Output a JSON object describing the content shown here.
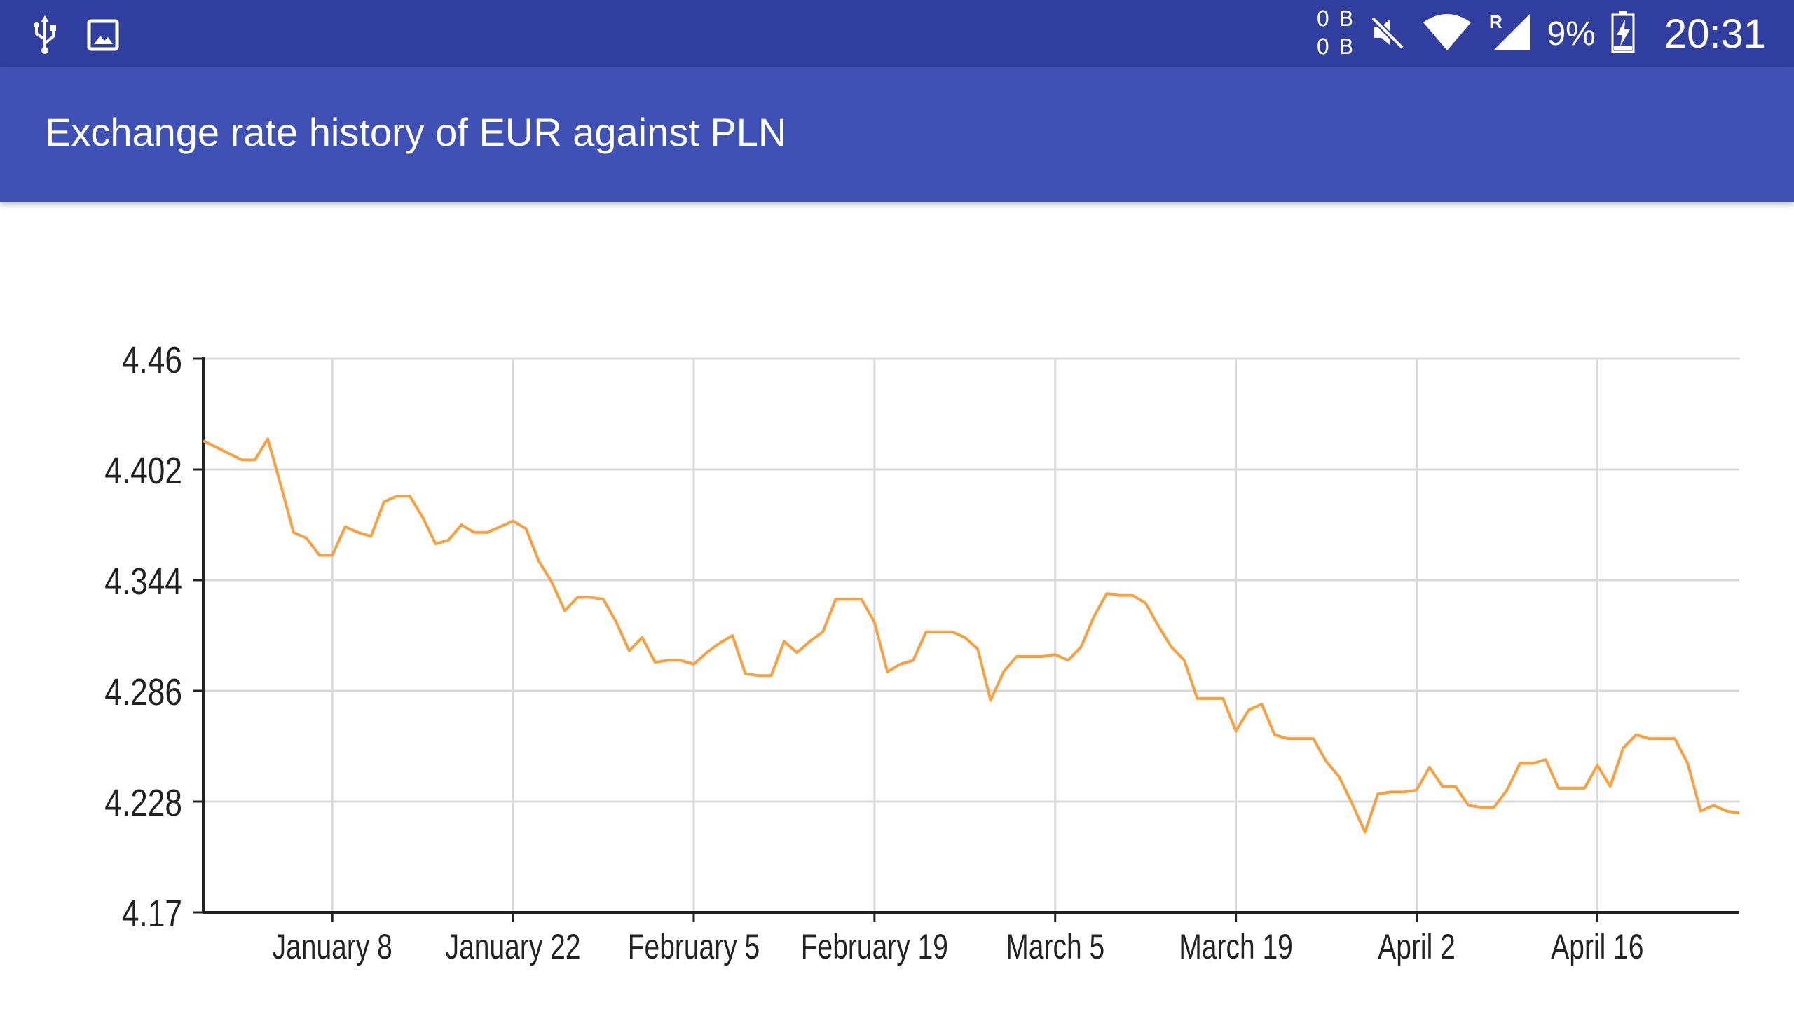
{
  "status_bar": {
    "net_up": "0 B",
    "net_down": "0 B",
    "battery": "9%",
    "time": "20:31",
    "roaming": "R",
    "icons": [
      "usb-icon",
      "image-icon",
      "mute-icon",
      "wifi-icon",
      "signal-icon",
      "battery-charging-icon"
    ]
  },
  "app_bar": {
    "title": "Exchange rate history of EUR against PLN"
  },
  "colors": {
    "status_bar": "#303f9f",
    "app_bar": "#3f51b5",
    "line": "#f9a040",
    "grid": "#d9d9d9",
    "axis": "#222222"
  },
  "chart_data": {
    "type": "line",
    "title": "",
    "xlabel": "",
    "ylabel": "",
    "grid": true,
    "ylim": [
      4.17,
      4.46
    ],
    "y_ticks": [
      "4.46",
      "4.402",
      "4.344",
      "4.286",
      "4.228",
      "4.17"
    ],
    "x_domain": [
      "2017-12-29",
      "2018-04-27"
    ],
    "x_ticks": [
      {
        "date": "2018-01-08",
        "label": "January 8"
      },
      {
        "date": "2018-01-22",
        "label": "January 22"
      },
      {
        "date": "2018-02-05",
        "label": "February 5"
      },
      {
        "date": "2018-02-19",
        "label": "February 19"
      },
      {
        "date": "2018-03-05",
        "label": "March 5"
      },
      {
        "date": "2018-03-19",
        "label": "March 19"
      },
      {
        "date": "2018-04-02",
        "label": "April 2"
      },
      {
        "date": "2018-04-16",
        "label": "April 16"
      }
    ],
    "series": [
      {
        "values": [
          [
            "2017-12-29",
            4.417
          ],
          [
            "2018-01-01",
            4.407
          ],
          [
            "2018-01-02",
            4.407
          ],
          [
            "2018-01-03",
            4.418
          ],
          [
            "2018-01-04",
            4.394
          ],
          [
            "2018-01-05",
            4.369
          ],
          [
            "2018-01-06",
            4.366
          ],
          [
            "2018-01-07",
            4.357
          ],
          [
            "2018-01-08",
            4.357
          ],
          [
            "2018-01-09",
            4.372
          ],
          [
            "2018-01-10",
            4.369
          ],
          [
            "2018-01-11",
            4.367
          ],
          [
            "2018-01-12",
            4.385
          ],
          [
            "2018-01-13",
            4.388
          ],
          [
            "2018-01-14",
            4.388
          ],
          [
            "2018-01-15",
            4.377
          ],
          [
            "2018-01-16",
            4.363
          ],
          [
            "2018-01-17",
            4.365
          ],
          [
            "2018-01-18",
            4.373
          ],
          [
            "2018-01-19",
            4.369
          ],
          [
            "2018-01-20",
            4.369
          ],
          [
            "2018-01-22",
            4.375
          ],
          [
            "2018-01-23",
            4.371
          ],
          [
            "2018-01-24",
            4.354
          ],
          [
            "2018-01-25",
            4.343
          ],
          [
            "2018-01-26",
            4.328
          ],
          [
            "2018-01-27",
            4.335
          ],
          [
            "2018-01-28",
            4.335
          ],
          [
            "2018-01-29",
            4.334
          ],
          [
            "2018-01-30",
            4.322
          ],
          [
            "2018-01-31",
            4.307
          ],
          [
            "2018-02-01",
            4.314
          ],
          [
            "2018-02-02",
            4.301
          ],
          [
            "2018-02-03",
            4.302
          ],
          [
            "2018-02-04",
            4.302
          ],
          [
            "2018-02-05",
            4.3
          ],
          [
            "2018-02-06",
            4.306
          ],
          [
            "2018-02-07",
            4.311
          ],
          [
            "2018-02-08",
            4.315
          ],
          [
            "2018-02-09",
            4.295
          ],
          [
            "2018-02-10",
            4.294
          ],
          [
            "2018-02-11",
            4.294
          ],
          [
            "2018-02-12",
            4.312
          ],
          [
            "2018-02-13",
            4.306
          ],
          [
            "2018-02-14",
            4.312
          ],
          [
            "2018-02-15",
            4.317
          ],
          [
            "2018-02-16",
            4.334
          ],
          [
            "2018-02-17",
            4.334
          ],
          [
            "2018-02-18",
            4.334
          ],
          [
            "2018-02-19",
            4.322
          ],
          [
            "2018-02-20",
            4.296
          ],
          [
            "2018-02-21",
            4.3
          ],
          [
            "2018-02-22",
            4.302
          ],
          [
            "2018-02-23",
            4.317
          ],
          [
            "2018-02-24",
            4.317
          ],
          [
            "2018-02-25",
            4.317
          ],
          [
            "2018-02-26",
            4.314
          ],
          [
            "2018-02-27",
            4.308
          ],
          [
            "2018-02-28",
            4.281
          ],
          [
            "2018-03-01",
            4.296
          ],
          [
            "2018-03-02",
            4.304
          ],
          [
            "2018-03-03",
            4.304
          ],
          [
            "2018-03-04",
            4.304
          ],
          [
            "2018-03-05",
            4.305
          ],
          [
            "2018-03-06",
            4.302
          ],
          [
            "2018-03-07",
            4.309
          ],
          [
            "2018-03-08",
            4.325
          ],
          [
            "2018-03-09",
            4.337
          ],
          [
            "2018-03-10",
            4.336
          ],
          [
            "2018-03-11",
            4.336
          ],
          [
            "2018-03-12",
            4.332
          ],
          [
            "2018-03-13",
            4.32
          ],
          [
            "2018-03-14",
            4.309
          ],
          [
            "2018-03-15",
            4.302
          ],
          [
            "2018-03-16",
            4.282
          ],
          [
            "2018-03-17",
            4.282
          ],
          [
            "2018-03-18",
            4.282
          ],
          [
            "2018-03-19",
            4.265
          ],
          [
            "2018-03-20",
            4.276
          ],
          [
            "2018-03-21",
            4.279
          ],
          [
            "2018-03-22",
            4.263
          ],
          [
            "2018-03-23",
            4.261
          ],
          [
            "2018-03-24",
            4.261
          ],
          [
            "2018-03-25",
            4.261
          ],
          [
            "2018-03-26",
            4.249
          ],
          [
            "2018-03-27",
            4.241
          ],
          [
            "2018-03-28",
            4.227
          ],
          [
            "2018-03-29",
            4.212
          ],
          [
            "2018-03-30",
            4.232
          ],
          [
            "2018-03-31",
            4.233
          ],
          [
            "2018-04-01",
            4.233
          ],
          [
            "2018-04-02",
            4.234
          ],
          [
            "2018-04-03",
            4.246
          ],
          [
            "2018-04-04",
            4.236
          ],
          [
            "2018-04-05",
            4.236
          ],
          [
            "2018-04-06",
            4.226
          ],
          [
            "2018-04-07",
            4.225
          ],
          [
            "2018-04-08",
            4.225
          ],
          [
            "2018-04-09",
            4.234
          ],
          [
            "2018-04-10",
            4.248
          ],
          [
            "2018-04-11",
            4.248
          ],
          [
            "2018-04-12",
            4.25
          ],
          [
            "2018-04-13",
            4.235
          ],
          [
            "2018-04-14",
            4.235
          ],
          [
            "2018-04-15",
            4.235
          ],
          [
            "2018-04-16",
            4.247
          ],
          [
            "2018-04-17",
            4.236
          ],
          [
            "2018-04-18",
            4.256
          ],
          [
            "2018-04-19",
            4.263
          ],
          [
            "2018-04-20",
            4.261
          ],
          [
            "2018-04-21",
            4.261
          ],
          [
            "2018-04-22",
            4.261
          ],
          [
            "2018-04-23",
            4.248
          ],
          [
            "2018-04-24",
            4.223
          ],
          [
            "2018-04-25",
            4.226
          ],
          [
            "2018-04-26",
            4.223
          ],
          [
            "2018-04-27",
            4.222
          ]
        ]
      }
    ]
  }
}
